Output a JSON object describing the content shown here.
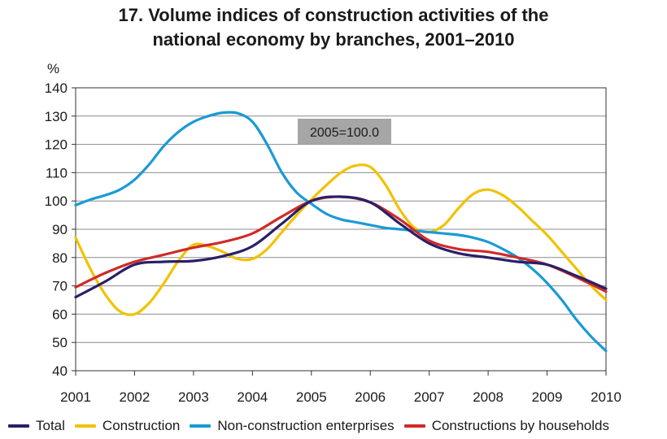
{
  "title": {
    "line1": "17. Volume indices of construction activities of the",
    "line2": "national economy by branches, 2001–2010"
  },
  "chart_data": {
    "type": "line",
    "ylabel": "%",
    "ylim": [
      40,
      140
    ],
    "yticks": [
      "40",
      "50",
      "60",
      "70",
      "80",
      "90",
      "100",
      "110",
      "120",
      "130",
      "140"
    ],
    "xlim": [
      2001,
      2010
    ],
    "xticks": [
      "2001",
      "2002",
      "2003",
      "2004",
      "2005",
      "2006",
      "2007",
      "2008",
      "2009",
      "2010"
    ],
    "grid": true,
    "legend_position": "bottom",
    "annotation": "2005=100.0",
    "series": [
      {
        "name": "Total",
        "color": "#2b1f66",
        "x": [
          2001,
          2001.5,
          2002,
          2002.5,
          2003,
          2003.5,
          2004,
          2004.5,
          2005,
          2005.5,
          2006,
          2006.5,
          2007,
          2007.5,
          2008,
          2008.5,
          2009,
          2009.5,
          2010
        ],
        "y": [
          66,
          71.5,
          77.5,
          78.5,
          78.8,
          80.5,
          84,
          92,
          100,
          101.5,
          99.5,
          92,
          85,
          81.5,
          80,
          78.5,
          77.5,
          73.5,
          69
        ]
      },
      {
        "name": "Construction",
        "color": "#f2c200",
        "x": [
          2001,
          2001.25,
          2001.5,
          2001.75,
          2002,
          2002.25,
          2002.5,
          2002.75,
          2003,
          2003.25,
          2003.5,
          2003.75,
          2004,
          2004.25,
          2004.5,
          2004.75,
          2005,
          2005.25,
          2005.5,
          2005.75,
          2006,
          2006.25,
          2006.5,
          2006.75,
          2007,
          2007.25,
          2007.5,
          2007.75,
          2008,
          2008.25,
          2008.5,
          2008.75,
          2009,
          2009.25,
          2009.5,
          2009.75,
          2010
        ],
        "y": [
          87,
          76,
          67,
          61,
          60,
          64,
          71,
          79,
          84.5,
          84,
          82,
          79.5,
          79.5,
          83,
          89,
          95,
          100.5,
          105.5,
          110,
          112.5,
          112,
          106,
          97,
          90.5,
          89,
          91.5,
          97.5,
          102.5,
          104,
          102,
          98,
          93,
          88,
          82,
          76,
          70,
          65
        ]
      },
      {
        "name": "Non-construction enterprises",
        "color": "#1a9ad6",
        "x": [
          2001,
          2001.25,
          2001.5,
          2001.75,
          2002,
          2002.25,
          2002.5,
          2002.75,
          2003,
          2003.25,
          2003.5,
          2003.75,
          2004,
          2004.25,
          2004.5,
          2004.75,
          2005,
          2005.25,
          2005.5,
          2005.75,
          2006,
          2006.25,
          2006.5,
          2006.75,
          2007,
          2007.25,
          2007.5,
          2007.75,
          2008,
          2008.25,
          2008.5,
          2008.75,
          2009,
          2009.25,
          2009.5,
          2009.75,
          2010
        ],
        "y": [
          98.5,
          100.5,
          102,
          104,
          107.5,
          113,
          119.5,
          124.5,
          128,
          130,
          131.2,
          131,
          128,
          120,
          110,
          103,
          99,
          95.5,
          93.5,
          92.5,
          91.5,
          90.5,
          90,
          89.5,
          89,
          88.5,
          88,
          87,
          85.5,
          83,
          80,
          76,
          71,
          65,
          58,
          52,
          47
        ]
      },
      {
        "name": "Constructions by households",
        "color": "#d02a2a",
        "x": [
          2001,
          2001.5,
          2002,
          2002.5,
          2003,
          2003.5,
          2004,
          2004.5,
          2005,
          2005.5,
          2006,
          2006.5,
          2007,
          2007.5,
          2008,
          2008.5,
          2009,
          2009.5,
          2010
        ],
        "y": [
          69.5,
          74.5,
          78.5,
          81,
          83.5,
          85.5,
          88.5,
          94.5,
          100,
          101.5,
          99.5,
          93.5,
          86,
          83,
          82,
          80,
          77.5,
          73,
          68
        ]
      }
    ]
  }
}
